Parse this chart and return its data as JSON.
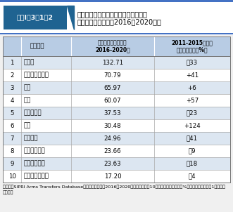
{
  "title_label": "図表Ⅰ－3－1－2",
  "title_main_line1": "アジア・大洋州における主要通常兵器",
  "title_main_line2": "の輸入額推移状況（2016～2020年）",
  "col_header_1": "国・地域",
  "col_header_2a": "輸入額（億米ドル）",
  "col_header_2b": "2016-2020年",
  "col_header_3a": "2011-2015年との",
  "col_header_3b": "輸入額の比輽（%）",
  "rows": [
    [
      1,
      "インド",
      "132.71",
      "－33"
    ],
    [
      2,
      "オーストラリア",
      "70.79",
      "+41"
    ],
    [
      3,
      "中国",
      "65.97",
      "+6"
    ],
    [
      4,
      "韓国",
      "60.07",
      "+57"
    ],
    [
      5,
      "パキスタン",
      "37.53",
      "－23"
    ],
    [
      6,
      "日本",
      "30.48",
      "+124"
    ],
    [
      7,
      "ベトナム",
      "24.96",
      "－41"
    ],
    [
      8,
      "シンガポール",
      "23.66",
      "－9"
    ],
    [
      9,
      "インドネシア",
      "23.63",
      "－18"
    ],
    [
      10,
      "バングラデシュ",
      "17.20",
      "－4"
    ]
  ],
  "note_lines": [
    "（注）「SIPRI Arms Transfers Database」をもとに作成　2016～2020年の輸入額上位10ヵ国のみ表記（比輽（%）の数値は小数点第1位を四捨",
    "五入）。"
  ],
  "title_tag_bg": "#1f6391",
  "title_tag_text": "#ffffff",
  "header_bg": "#b8cce4",
  "row_bg_even": "#dce6f1",
  "row_bg_odd": "#ffffff",
  "top_stripe_color": "#4472c4",
  "fig_bg": "#f0f0f0"
}
